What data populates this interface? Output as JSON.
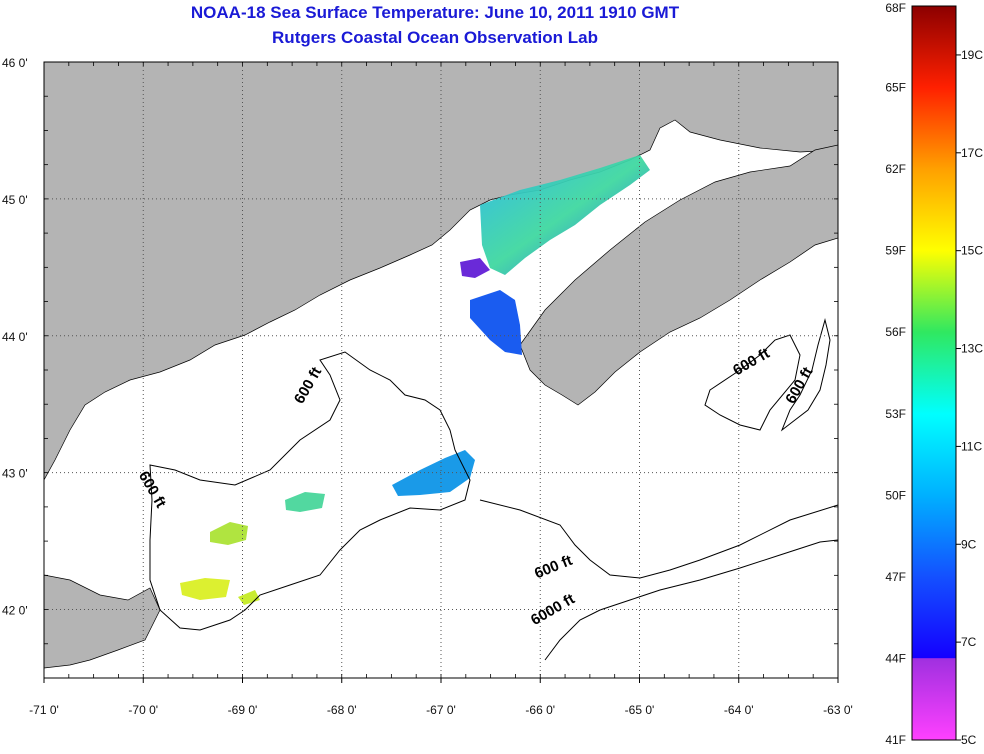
{
  "title": "NOAA-18 Sea Surface Temperature:  June 10, 2011 1910 GMT",
  "subtitle": "Rutgers Coastal Ocean Observation Lab",
  "map": {
    "lon_range": [
      -71,
      -63
    ],
    "lat_range": [
      41.5,
      46
    ],
    "lon_ticks": [
      {
        "value": -71,
        "label": "-71 0'"
      },
      {
        "value": -70,
        "label": "-70 0'"
      },
      {
        "value": -69,
        "label": "-69 0'"
      },
      {
        "value": -68,
        "label": "-68 0'"
      },
      {
        "value": -67,
        "label": "-67 0'"
      },
      {
        "value": -66,
        "label": "-66 0'"
      },
      {
        "value": -65,
        "label": "-65 0'"
      },
      {
        "value": -64,
        "label": "-64 0'"
      },
      {
        "value": -63,
        "label": "-63 0'"
      }
    ],
    "lat_ticks": [
      {
        "value": 46,
        "label": "46 0'"
      },
      {
        "value": 45,
        "label": "45 0'"
      },
      {
        "value": 44,
        "label": "44 0'"
      },
      {
        "value": 43,
        "label": "43 0'"
      },
      {
        "value": 42,
        "label": "42 0'"
      }
    ],
    "grid": "dotted",
    "land_color": "#b4b4b4",
    "water_color": "#ffffff",
    "contour_labels": [
      {
        "label": "600 ft",
        "lon": -68.3,
        "lat": 43.62,
        "angle": -60
      },
      {
        "label": "600 ft",
        "lon": -69.95,
        "lat": 42.86,
        "angle": 60
      },
      {
        "label": "600 ft",
        "lon": -63.85,
        "lat": 43.78,
        "angle": -30
      },
      {
        "label": "600 ft",
        "lon": -63.35,
        "lat": 43.62,
        "angle": -60
      },
      {
        "label": "600 ft",
        "lon": -65.85,
        "lat": 42.28,
        "angle": -22
      },
      {
        "label": "6000 ft",
        "lon": -65.85,
        "lat": 41.97,
        "angle": -30
      }
    ]
  },
  "colorbar": {
    "f_labels": [
      {
        "value": 41,
        "label": "41F"
      },
      {
        "value": 44,
        "label": "44F"
      },
      {
        "value": 47,
        "label": "47F"
      },
      {
        "value": 50,
        "label": "50F"
      },
      {
        "value": 53,
        "label": "53F"
      },
      {
        "value": 56,
        "label": "56F"
      },
      {
        "value": 59,
        "label": "59F"
      },
      {
        "value": 62,
        "label": "62F"
      },
      {
        "value": 65,
        "label": "65F"
      },
      {
        "value": 68,
        "label": "68F"
      }
    ],
    "c_labels": [
      {
        "value": 5,
        "label": "5C"
      },
      {
        "value": 7,
        "label": "7C"
      },
      {
        "value": 9,
        "label": "9C"
      },
      {
        "value": 11,
        "label": "11C"
      },
      {
        "value": 13,
        "label": "13C"
      },
      {
        "value": 15,
        "label": "15C"
      },
      {
        "value": 17,
        "label": "17C"
      },
      {
        "value": 19,
        "label": "19C"
      }
    ],
    "colors": [
      "#ff40ff",
      "#9c27d8",
      "#0018ff",
      "#0090ff",
      "#00e6e6",
      "#20e070",
      "#b4f020",
      "#ffff00",
      "#ffa000",
      "#ff2000",
      "#a00000"
    ]
  }
}
